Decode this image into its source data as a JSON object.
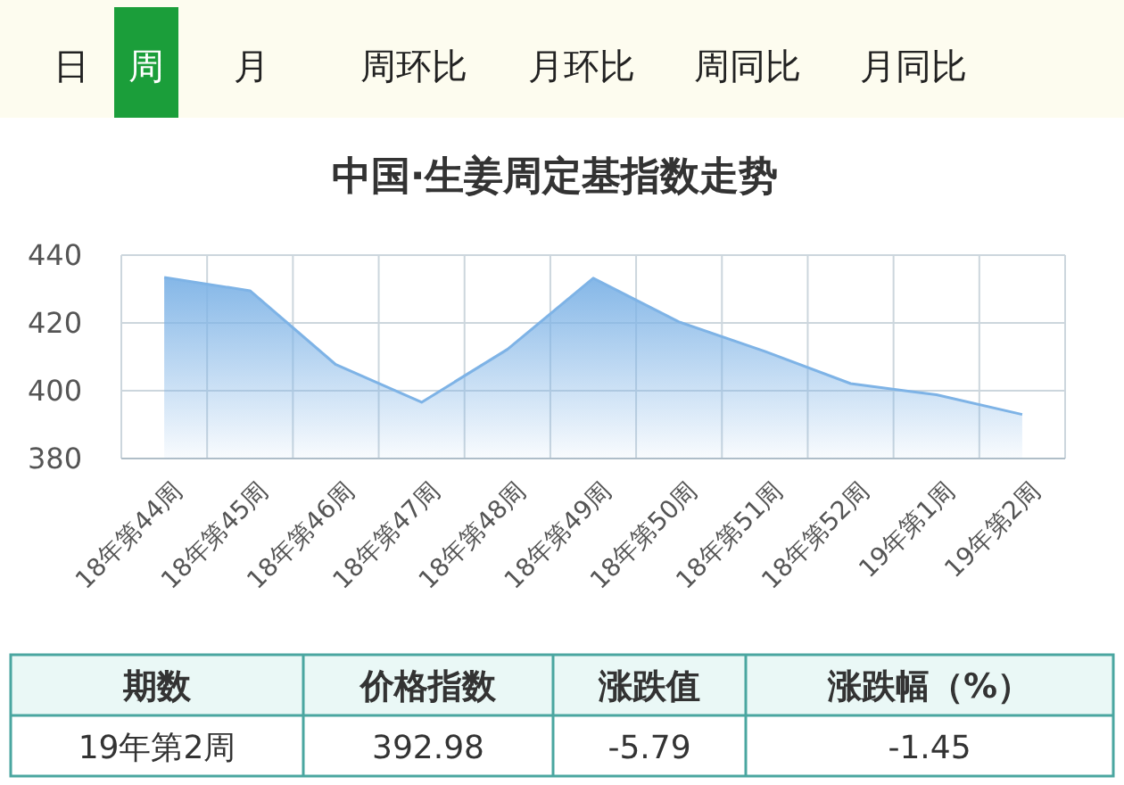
{
  "chart_data": {
    "type": "area",
    "title": "中国·生姜周定基指数走势",
    "categories": [
      "18年第44周",
      "18年第45周",
      "18年第46周",
      "18年第47周",
      "18年第48周",
      "18年第49周",
      "18年第50周",
      "18年第51周",
      "18年第52周",
      "19年第1周",
      "19年第2周"
    ],
    "series": [
      {
        "color": "#7eb3e6",
        "values": [
          433.4,
          429.5,
          407.7,
          396.6,
          412.2,
          433.2,
          420.3,
          411.6,
          402.1,
          398.8,
          393.0
        ]
      }
    ],
    "ylim": [
      380,
      440
    ],
    "yticks": [
      380,
      400,
      420,
      440
    ],
    "grid": true,
    "annotations": [
      "日",
      "周",
      "月",
      "周环比",
      "月环比",
      "周同比",
      "月同比",
      "期数",
      "价格指数",
      "涨跌值",
      "涨跌幅（%）",
      "19年第2周",
      "392.98",
      "-5.79",
      "-1.45"
    ]
  }
}
